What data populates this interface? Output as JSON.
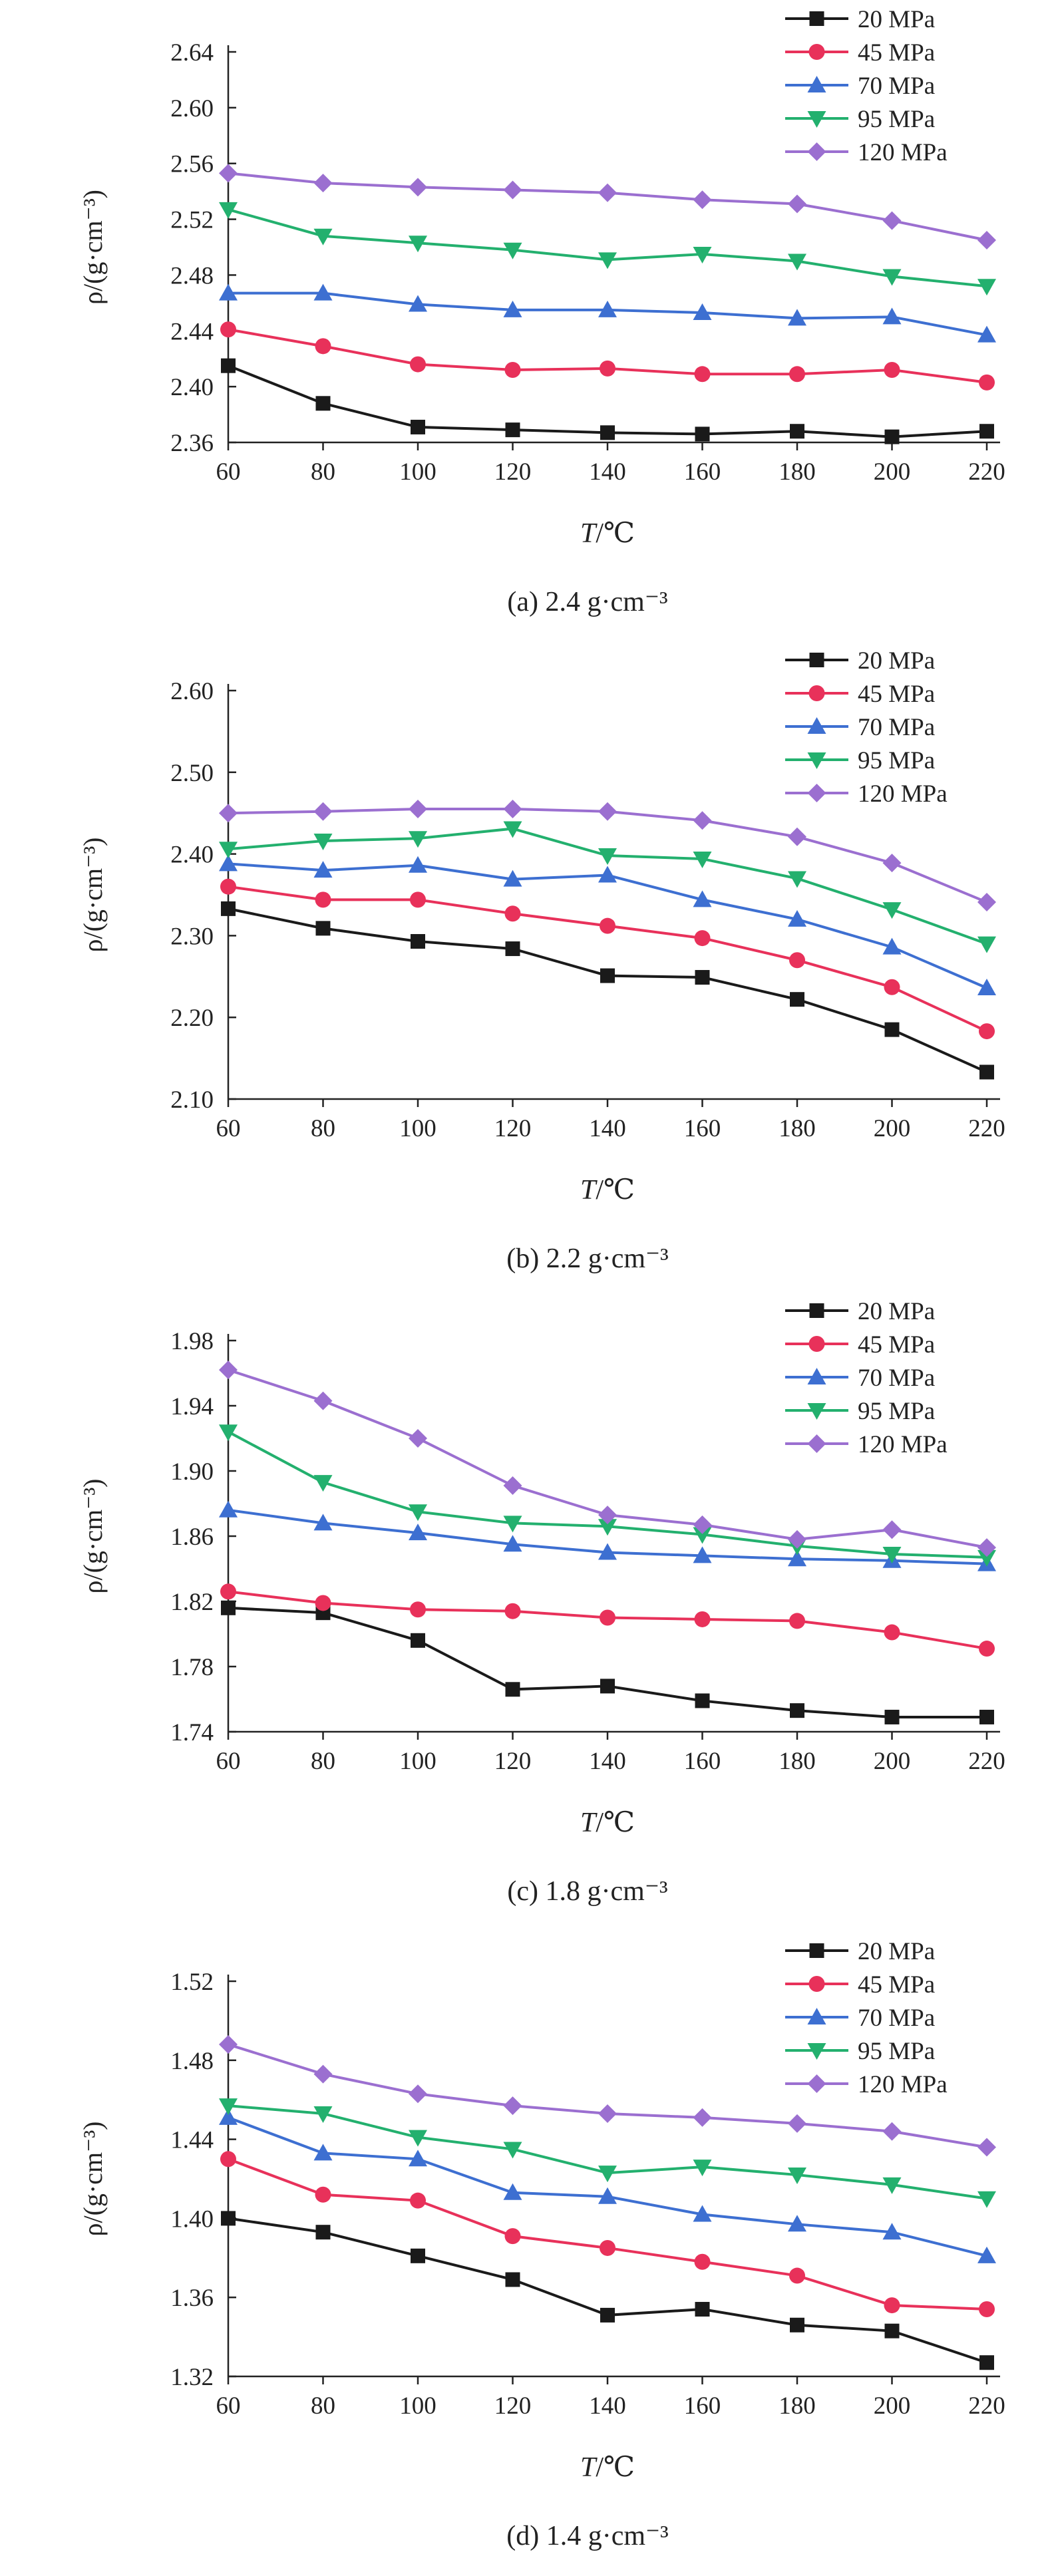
{
  "chart_data": [
    {
      "type": "line",
      "caption": "(a) 2.4 g·cm⁻³",
      "xlabel_italic": "T",
      "xlabel_unit": "/℃",
      "ylabel": "ρ/(g·cm⁻³)",
      "x": [
        60,
        80,
        100,
        120,
        140,
        160,
        180,
        200,
        220
      ],
      "xticks": [
        "60",
        "80",
        "100",
        "120",
        "140",
        "160",
        "180",
        "200",
        "220"
      ],
      "ylim": [
        2.36,
        2.64
      ],
      "yticks": [
        "2.36",
        "2.40",
        "2.44",
        "2.48",
        "2.52",
        "2.56",
        "2.60",
        "2.64"
      ],
      "series": [
        {
          "name": "20 MPa",
          "values": [
            2.415,
            2.388,
            2.371,
            2.369,
            2.367,
            2.366,
            2.368,
            2.364,
            2.368
          ]
        },
        {
          "name": "45 MPa",
          "values": [
            2.441,
            2.429,
            2.416,
            2.412,
            2.413,
            2.409,
            2.409,
            2.412,
            2.403
          ]
        },
        {
          "name": "70 MPa",
          "values": [
            2.467,
            2.467,
            2.459,
            2.455,
            2.455,
            2.453,
            2.449,
            2.45,
            2.437
          ]
        },
        {
          "name": "95 MPa",
          "values": [
            2.527,
            2.508,
            2.503,
            2.498,
            2.491,
            2.495,
            2.49,
            2.479,
            2.472
          ]
        },
        {
          "name": "120 MPa",
          "values": [
            2.553,
            2.546,
            2.543,
            2.541,
            2.539,
            2.534,
            2.531,
            2.519,
            2.505
          ]
        }
      ]
    },
    {
      "type": "line",
      "caption": "(b) 2.2 g·cm⁻³",
      "xlabel_italic": "T",
      "xlabel_unit": "/℃",
      "ylabel": "ρ/(g·cm⁻³)",
      "x": [
        60,
        80,
        100,
        120,
        140,
        160,
        180,
        200,
        220
      ],
      "xticks": [
        "60",
        "80",
        "100",
        "120",
        "140",
        "160",
        "180",
        "200",
        "220"
      ],
      "ylim": [
        2.1,
        2.6
      ],
      "yticks": [
        "2.10",
        "2.20",
        "2.30",
        "2.40",
        "2.50",
        "2.60"
      ],
      "series": [
        {
          "name": "20 MPa",
          "values": [
            2.333,
            2.309,
            2.293,
            2.284,
            2.251,
            2.249,
            2.222,
            2.185,
            2.133
          ]
        },
        {
          "name": "45 MPa",
          "values": [
            2.36,
            2.344,
            2.344,
            2.327,
            2.312,
            2.297,
            2.27,
            2.237,
            2.183
          ]
        },
        {
          "name": "70 MPa",
          "values": [
            2.388,
            2.38,
            2.386,
            2.369,
            2.374,
            2.344,
            2.32,
            2.286,
            2.236
          ]
        },
        {
          "name": "95 MPa",
          "values": [
            2.406,
            2.416,
            2.419,
            2.431,
            2.398,
            2.394,
            2.37,
            2.332,
            2.29
          ]
        },
        {
          "name": "120 MPa",
          "values": [
            2.45,
            2.452,
            2.455,
            2.455,
            2.452,
            2.441,
            2.421,
            2.389,
            2.341
          ]
        }
      ]
    },
    {
      "type": "line",
      "caption": "(c) 1.8 g·cm⁻³",
      "xlabel_italic": "T",
      "xlabel_unit": "/℃",
      "ylabel": "ρ/(g·cm⁻³)",
      "x": [
        60,
        80,
        100,
        120,
        140,
        160,
        180,
        200,
        220
      ],
      "xticks": [
        "60",
        "80",
        "100",
        "120",
        "140",
        "160",
        "180",
        "200",
        "220"
      ],
      "ylim": [
        1.74,
        1.98
      ],
      "yticks": [
        "1.74",
        "1.78",
        "1.82",
        "1.86",
        "1.90",
        "1.94",
        "1.98"
      ],
      "series": [
        {
          "name": "20 MPa",
          "values": [
            1.816,
            1.813,
            1.796,
            1.766,
            1.768,
            1.759,
            1.753,
            1.749,
            1.749
          ]
        },
        {
          "name": "45 MPa",
          "values": [
            1.826,
            1.819,
            1.815,
            1.814,
            1.81,
            1.809,
            1.808,
            1.801,
            1.791
          ]
        },
        {
          "name": "70 MPa",
          "values": [
            1.876,
            1.868,
            1.862,
            1.855,
            1.85,
            1.848,
            1.846,
            1.845,
            1.843
          ]
        },
        {
          "name": "95 MPa",
          "values": [
            1.924,
            1.893,
            1.875,
            1.868,
            1.866,
            1.861,
            1.854,
            1.849,
            1.847
          ]
        },
        {
          "name": "120 MPa",
          "values": [
            1.962,
            1.943,
            1.92,
            1.891,
            1.873,
            1.867,
            1.858,
            1.864,
            1.853
          ]
        }
      ]
    },
    {
      "type": "line",
      "caption": "(d) 1.4 g·cm⁻³",
      "xlabel_italic": "T",
      "xlabel_unit": "/℃",
      "ylabel": "ρ/(g·cm⁻³)",
      "x": [
        60,
        80,
        100,
        120,
        140,
        160,
        180,
        200,
        220
      ],
      "xticks": [
        "60",
        "80",
        "100",
        "120",
        "140",
        "160",
        "180",
        "200",
        "220"
      ],
      "ylim": [
        1.32,
        1.52
      ],
      "yticks": [
        "1.32",
        "1.36",
        "1.40",
        "1.44",
        "1.48",
        "1.52"
      ],
      "series": [
        {
          "name": "20 MPa",
          "values": [
            1.4,
            1.393,
            1.381,
            1.369,
            1.351,
            1.354,
            1.346,
            1.343,
            1.327
          ]
        },
        {
          "name": "45 MPa",
          "values": [
            1.43,
            1.412,
            1.409,
            1.391,
            1.385,
            1.378,
            1.371,
            1.356,
            1.354
          ]
        },
        {
          "name": "70 MPa",
          "values": [
            1.451,
            1.433,
            1.43,
            1.413,
            1.411,
            1.402,
            1.397,
            1.393,
            1.381
          ]
        },
        {
          "name": "95 MPa",
          "values": [
            1.457,
            1.453,
            1.441,
            1.435,
            1.423,
            1.426,
            1.422,
            1.417,
            1.41
          ]
        },
        {
          "name": "120 MPa",
          "values": [
            1.488,
            1.473,
            1.463,
            1.457,
            1.453,
            1.451,
            1.448,
            1.444,
            1.436
          ]
        }
      ]
    }
  ],
  "series_styles": [
    {
      "color": "#1a1a1a",
      "marker": "square"
    },
    {
      "color": "#e8315a",
      "marker": "circle"
    },
    {
      "color": "#3d6fd1",
      "marker": "triangle-up"
    },
    {
      "color": "#23b06e",
      "marker": "triangle-down"
    },
    {
      "color": "#9b6fd0",
      "marker": "diamond"
    }
  ]
}
